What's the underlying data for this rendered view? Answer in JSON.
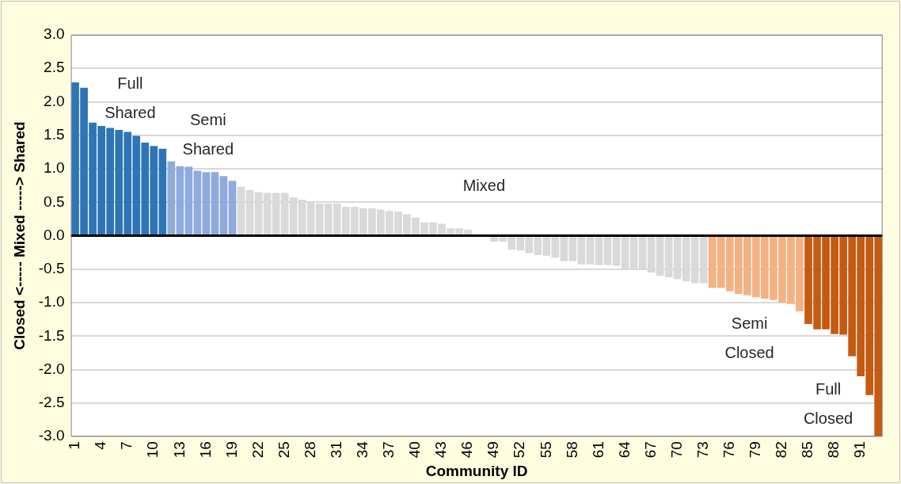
{
  "chart_data": {
    "type": "bar",
    "xlabel": "Community ID",
    "ylabel": "Closed <----- Mixed -----> Shared",
    "categories": [
      "1",
      null,
      null,
      "4",
      null,
      null,
      "7",
      null,
      null,
      "10",
      null,
      null,
      "13",
      null,
      null,
      "16",
      null,
      null,
      "19",
      null,
      null,
      "22",
      null,
      null,
      "25",
      null,
      null,
      "28",
      null,
      null,
      "31",
      null,
      null,
      "34",
      null,
      null,
      "37",
      null,
      null,
      "40",
      null,
      null,
      "43",
      null,
      null,
      "46",
      null,
      null,
      "49",
      null,
      null,
      "52",
      null,
      null,
      "55",
      null,
      null,
      "58",
      null,
      null,
      "61",
      null,
      null,
      "64",
      null,
      null,
      "67",
      null,
      null,
      "70",
      null,
      null,
      "73",
      null,
      null,
      "76",
      null,
      null,
      "79",
      null,
      null,
      "82",
      null,
      null,
      "85",
      null,
      null,
      "88",
      null,
      null,
      "91",
      null,
      null
    ],
    "values": [
      2.29,
      2.21,
      1.69,
      1.64,
      1.61,
      1.58,
      1.55,
      1.49,
      1.39,
      1.34,
      1.3,
      1.11,
      1.04,
      1.03,
      0.97,
      0.95,
      0.95,
      0.89,
      0.82,
      0.73,
      0.68,
      0.65,
      0.64,
      0.64,
      0.64,
      0.57,
      0.54,
      0.5,
      0.48,
      0.48,
      0.48,
      0.43,
      0.43,
      0.41,
      0.41,
      0.39,
      0.37,
      0.36,
      0.32,
      0.27,
      0.2,
      0.2,
      0.18,
      0.11,
      0.11,
      0.09,
      0,
      0,
      -0.09,
      -0.09,
      -0.21,
      -0.22,
      -0.26,
      -0.29,
      -0.3,
      -0.33,
      -0.38,
      -0.38,
      -0.43,
      -0.43,
      -0.44,
      -0.44,
      -0.45,
      -0.5,
      -0.5,
      -0.5,
      -0.55,
      -0.6,
      -0.62,
      -0.65,
      -0.68,
      -0.71,
      -0.71,
      -0.78,
      -0.78,
      -0.83,
      -0.87,
      -0.89,
      -0.92,
      -0.94,
      -0.96,
      -1.0,
      -1.02,
      -1.13,
      -1.32,
      -1.4,
      -1.4,
      -1.47,
      -1.48,
      -1.8,
      -2.1,
      -2.38,
      -3.0
    ],
    "colors": [
      "#2e75b6",
      "#2e75b6",
      "#2e75b6",
      "#2e75b6",
      "#2e75b6",
      "#2e75b6",
      "#2e75b6",
      "#2e75b6",
      "#2e75b6",
      "#2e75b6",
      "#2e75b6",
      "#8faadc",
      "#8faadc",
      "#8faadc",
      "#8faadc",
      "#8faadc",
      "#8faadc",
      "#8faadc",
      "#8faadc",
      "#d9d9d9",
      "#d9d9d9",
      "#d9d9d9",
      "#d9d9d9",
      "#d9d9d9",
      "#d9d9d9",
      "#d9d9d9",
      "#d9d9d9",
      "#d9d9d9",
      "#d9d9d9",
      "#d9d9d9",
      "#d9d9d9",
      "#d9d9d9",
      "#d9d9d9",
      "#d9d9d9",
      "#d9d9d9",
      "#d9d9d9",
      "#d9d9d9",
      "#d9d9d9",
      "#d9d9d9",
      "#d9d9d9",
      "#d9d9d9",
      "#d9d9d9",
      "#d9d9d9",
      "#d9d9d9",
      "#d9d9d9",
      "#d9d9d9",
      "#d9d9d9",
      "#d9d9d9",
      "#d9d9d9",
      "#d9d9d9",
      "#d9d9d9",
      "#d9d9d9",
      "#d9d9d9",
      "#d9d9d9",
      "#d9d9d9",
      "#d9d9d9",
      "#d9d9d9",
      "#d9d9d9",
      "#d9d9d9",
      "#d9d9d9",
      "#d9d9d9",
      "#d9d9d9",
      "#d9d9d9",
      "#d9d9d9",
      "#d9d9d9",
      "#d9d9d9",
      "#d9d9d9",
      "#d9d9d9",
      "#d9d9d9",
      "#d9d9d9",
      "#d9d9d9",
      "#d9d9d9",
      "#d9d9d9",
      "#f4b183",
      "#f4b183",
      "#f4b183",
      "#f4b183",
      "#f4b183",
      "#f4b183",
      "#f4b183",
      "#f4b183",
      "#f4b183",
      "#f4b183",
      "#f4b183",
      "#c55a11",
      "#c55a11",
      "#c55a11",
      "#c55a11",
      "#c55a11",
      "#c55a11",
      "#c55a11",
      "#c55a11",
      "#c55a11"
    ],
    "ylim": [
      -3,
      3
    ],
    "yticks": [
      {
        "value": -3,
        "label": "-3.0"
      },
      {
        "value": -2.5,
        "label": "-2.5"
      },
      {
        "value": -2,
        "label": "-2.0"
      },
      {
        "value": -1.5,
        "label": "-1.5"
      },
      {
        "value": -1,
        "label": "-1.0"
      },
      {
        "value": -0.5,
        "label": "-0.5"
      },
      {
        "value": 0,
        "label": "0.0"
      },
      {
        "value": 0.5,
        "label": "0.5"
      },
      {
        "value": 1,
        "label": "1.0"
      },
      {
        "value": 1.5,
        "label": "1.5"
      },
      {
        "value": 2,
        "label": "2.0"
      },
      {
        "value": 2.5,
        "label": "2.5"
      },
      {
        "value": 3,
        "label": "3.0"
      }
    ],
    "grid": "y",
    "annotations": [
      "Full Shared",
      "Semi Shared",
      "Mixed",
      "Semi Closed",
      "Full Closed"
    ]
  }
}
